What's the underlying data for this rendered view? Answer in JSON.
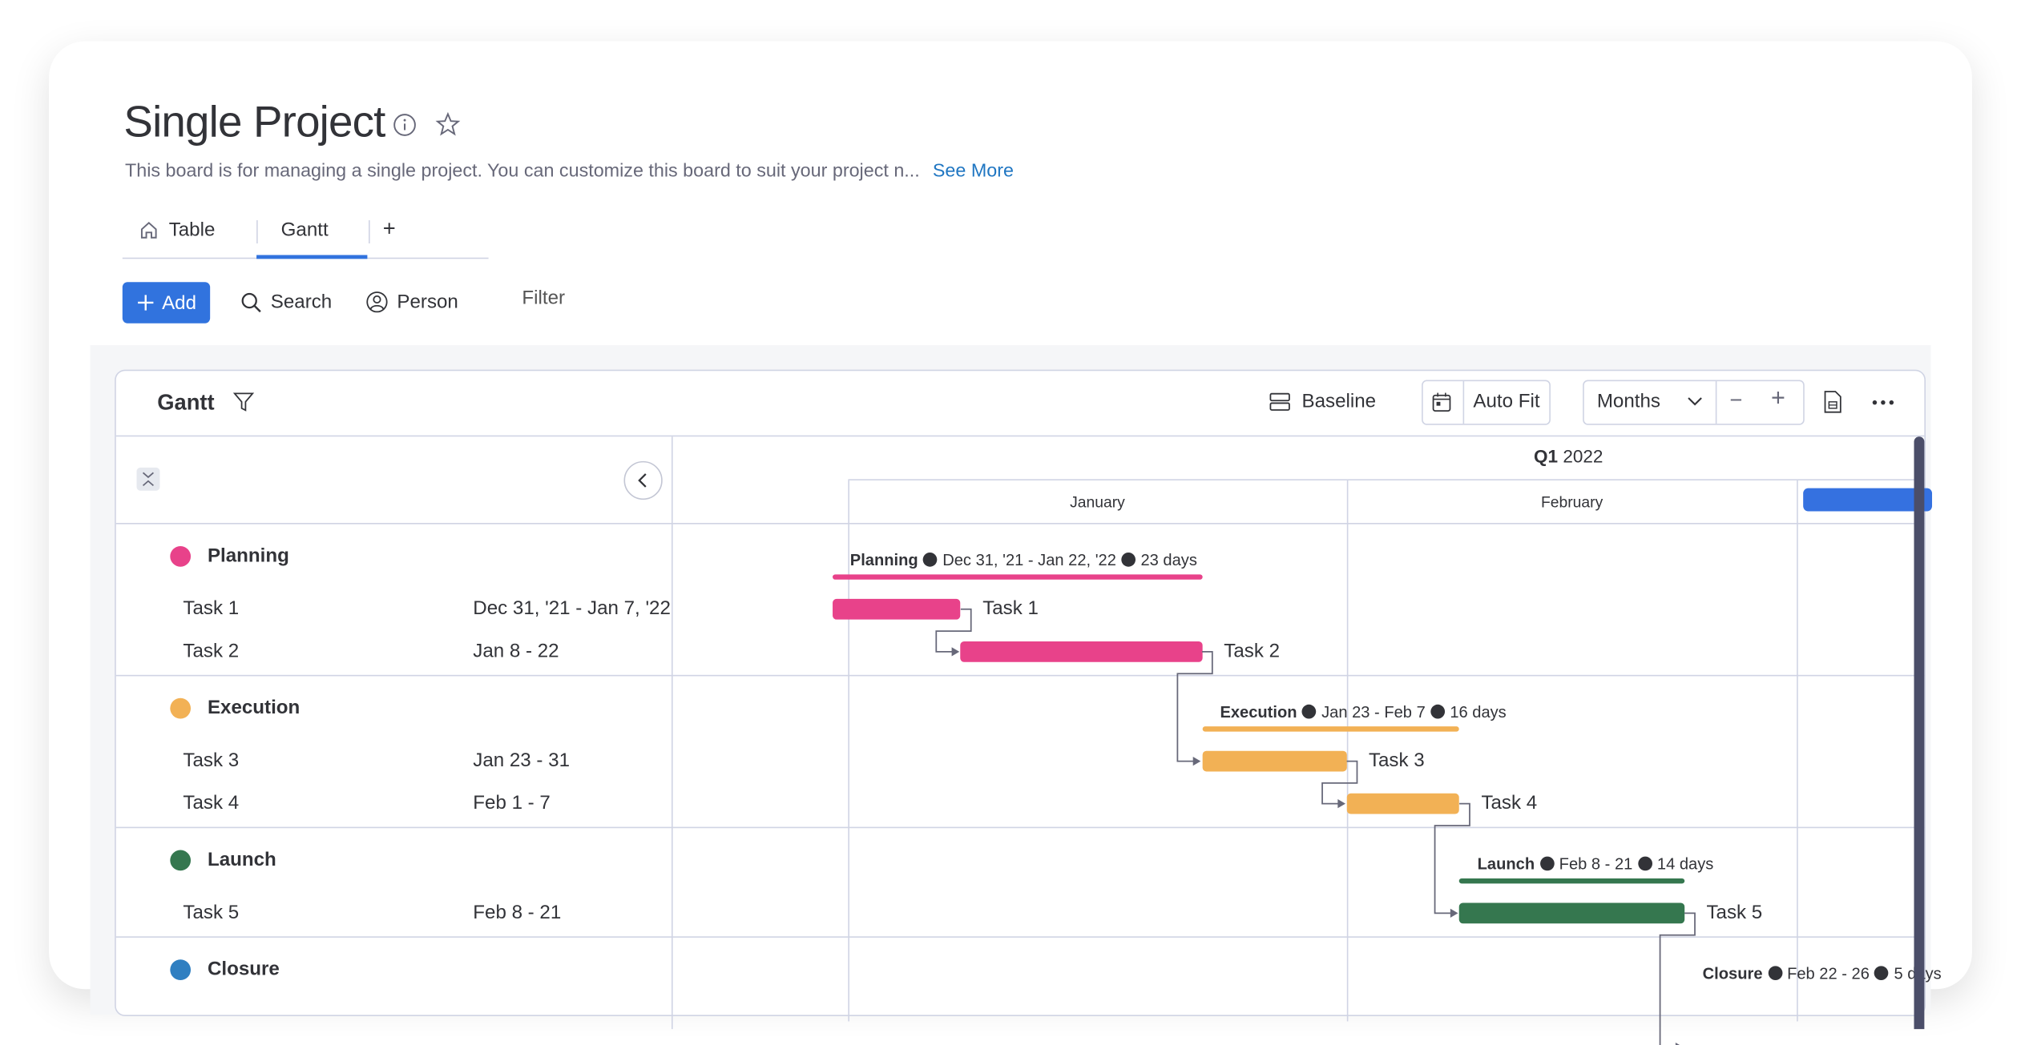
{
  "board": {
    "title": "Single Project",
    "description": "This board is for managing a single project. You can customize this board to suit your project n...",
    "see_more": "See More"
  },
  "tabs": [
    {
      "label": "Table",
      "icon": "home-icon",
      "active": false
    },
    {
      "label": "Gantt",
      "active": true
    },
    {
      "label": "+"
    }
  ],
  "toolbar": {
    "add": "Add",
    "search": "Search",
    "person": "Person",
    "filter": "Filter"
  },
  "gantt": {
    "title": "Gantt",
    "baseline": "Baseline",
    "auto_fit": "Auto Fit",
    "scale": "Months",
    "minus": "−",
    "plus": "+",
    "quarter_bold": "Q1",
    "quarter_year": "2022",
    "months": [
      "January",
      "February"
    ],
    "colors": {
      "accent": "#3173de",
      "planning": "#e8428a",
      "execution": "#f2b155",
      "launch": "#35774f",
      "closure": "#2f7fc1"
    },
    "groups": [
      {
        "name": "Planning",
        "color": "#e8428a",
        "summary_dates": "Dec 31, '21 - Jan 22, '22",
        "summary_days": "23 days",
        "start": "2021-12-31",
        "end": "2022-01-22",
        "tasks": [
          {
            "name": "Task 1",
            "dates": "Dec 31, '21 - Jan 7, '22",
            "start": "2021-12-31",
            "end": "2022-01-07"
          },
          {
            "name": "Task 2",
            "dates": "Jan 8 - 22",
            "start": "2022-01-08",
            "end": "2022-01-22"
          }
        ]
      },
      {
        "name": "Execution",
        "color": "#f2b155",
        "summary_dates": "Jan 23 - Feb 7",
        "summary_days": "16 days",
        "start": "2022-01-23",
        "end": "2022-02-07",
        "tasks": [
          {
            "name": "Task 3",
            "dates": "Jan 23 - 31",
            "start": "2022-01-23",
            "end": "2022-01-31"
          },
          {
            "name": "Task 4",
            "dates": "Feb 1 - 7",
            "start": "2022-02-01",
            "end": "2022-02-07"
          }
        ]
      },
      {
        "name": "Launch",
        "color": "#35774f",
        "summary_dates": "Feb 8 - 21",
        "summary_days": "14 days",
        "start": "2022-02-08",
        "end": "2022-02-21",
        "tasks": [
          {
            "name": "Task 5",
            "dates": "Feb 8 - 21",
            "start": "2022-02-08",
            "end": "2022-02-21"
          }
        ]
      },
      {
        "name": "Closure",
        "color": "#2f7fc1",
        "summary_dates": "Feb 22 - 26",
        "summary_days": "5 days",
        "start": "2022-02-22",
        "end": "2022-02-26",
        "tasks": []
      }
    ]
  }
}
